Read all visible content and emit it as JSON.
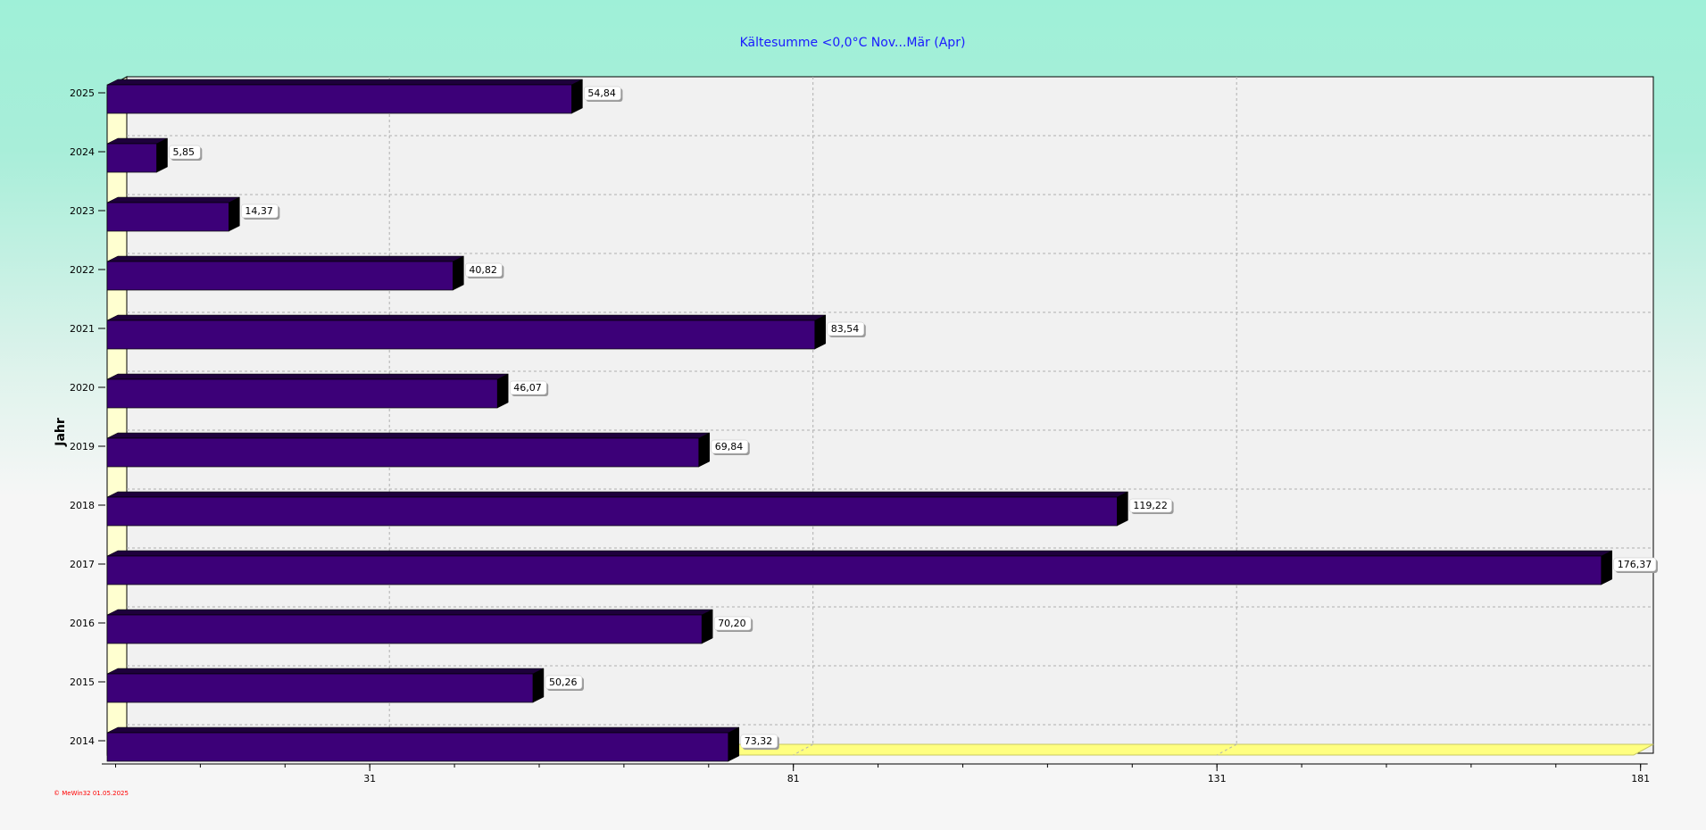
{
  "chart_data": {
    "type": "bar",
    "orientation": "horizontal",
    "title": "Kältesumme  <0,0°C  Nov...Mär (Apr)",
    "ylabel": "Jahr",
    "xlabel": "",
    "categories": [
      "2025",
      "2024",
      "2023",
      "2022",
      "2021",
      "2020",
      "2019",
      "2018",
      "2017",
      "2016",
      "2015",
      "2014"
    ],
    "values": [
      54.84,
      5.85,
      14.37,
      40.82,
      83.54,
      46.07,
      69.84,
      119.22,
      176.37,
      70.2,
      50.26,
      73.32
    ],
    "value_labels": [
      "54,84",
      "5,85",
      "14,37",
      "40,82",
      "83,54",
      "46,07",
      "69,84",
      "119,22",
      "176,37",
      "70,20",
      "50,26",
      "73,32"
    ],
    "x_ticks": [
      "31",
      "81",
      "131",
      "181"
    ],
    "x_tick_values": [
      31,
      81,
      131,
      181
    ],
    "xlim": [
      0,
      181
    ],
    "grid": true,
    "bar_color": "#3c0078",
    "credit": "© MeWin32  01.05.2025"
  }
}
